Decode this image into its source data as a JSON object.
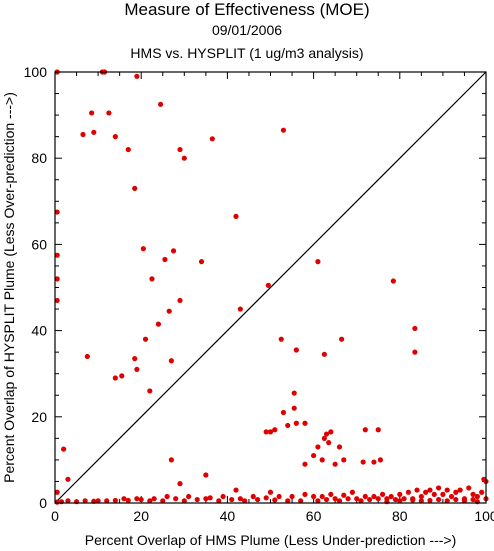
{
  "chart_data": {
    "type": "scatter",
    "title": "Measure of Effectiveness (MOE)",
    "subtitle_date": "09/01/2006",
    "subtitle_comparison": "HMS vs. HYSPLIT  (1 ug/m3 analysis)",
    "xlabel": "Percent Overlap of HMS Plume (Less Under-prediction --->)",
    "ylabel": "Percent Overlap of HYSPLIT Plume (Less Over-prediction --->)",
    "xlim": [
      0,
      100
    ],
    "ylim": [
      0,
      100
    ],
    "x_ticks": [
      0,
      20,
      40,
      60,
      80,
      100
    ],
    "y_ticks": [
      0,
      20,
      40,
      60,
      80,
      100
    ],
    "point_color": "#e00000",
    "reference_line": {
      "from": [
        0,
        0
      ],
      "to": [
        100,
        100
      ]
    },
    "points": [
      [
        0.5,
        100
      ],
      [
        11,
        100
      ],
      [
        11.5,
        100
      ],
      [
        19,
        99
      ],
      [
        8.5,
        90.5
      ],
      [
        12.5,
        90.5
      ],
      [
        24.5,
        92.5
      ],
      [
        6.5,
        85.5
      ],
      [
        9,
        86
      ],
      [
        14,
        85
      ],
      [
        17,
        82
      ],
      [
        29,
        82
      ],
      [
        30,
        80
      ],
      [
        36.5,
        84.5
      ],
      [
        53,
        86.5
      ],
      [
        18.5,
        73
      ],
      [
        42,
        66.5
      ],
      [
        0.5,
        67.5
      ],
      [
        20.5,
        59
      ],
      [
        27.5,
        58.5
      ],
      [
        0.5,
        57.5
      ],
      [
        25.5,
        56.5
      ],
      [
        34,
        56
      ],
      [
        61,
        56
      ],
      [
        0.5,
        52
      ],
      [
        22.5,
        52
      ],
      [
        78.5,
        51.5
      ],
      [
        0.5,
        47
      ],
      [
        29,
        47
      ],
      [
        49.5,
        50.5
      ],
      [
        26.5,
        44.5
      ],
      [
        43,
        45
      ],
      [
        24,
        41.5
      ],
      [
        21,
        38
      ],
      [
        52.5,
        38
      ],
      [
        66.5,
        38
      ],
      [
        83.5,
        40.5
      ],
      [
        83.5,
        35
      ],
      [
        7.5,
        34
      ],
      [
        18.5,
        33.5
      ],
      [
        27,
        33
      ],
      [
        56,
        35.5
      ],
      [
        62.5,
        34.5
      ],
      [
        19,
        31
      ],
      [
        14,
        29
      ],
      [
        15.5,
        29.5
      ],
      [
        22,
        26
      ],
      [
        55.5,
        25.5
      ],
      [
        55.5,
        22
      ],
      [
        53,
        21
      ],
      [
        51,
        17
      ],
      [
        49,
        16.5
      ],
      [
        50,
        16.5
      ],
      [
        54,
        18
      ],
      [
        56,
        18.5
      ],
      [
        58,
        18.5
      ],
      [
        75,
        17
      ],
      [
        72,
        17
      ],
      [
        63,
        16
      ],
      [
        64,
        16.5
      ],
      [
        62.5,
        15
      ],
      [
        63.5,
        14
      ],
      [
        61,
        13
      ],
      [
        66,
        13
      ],
      [
        60,
        11
      ],
      [
        62,
        10
      ],
      [
        58,
        9
      ],
      [
        65,
        9
      ],
      [
        67,
        10
      ],
      [
        71.5,
        9.5
      ],
      [
        74,
        9.5
      ],
      [
        75.5,
        10
      ],
      [
        2,
        12.5
      ],
      [
        27,
        10
      ],
      [
        29,
        4.5
      ],
      [
        35,
        6.5
      ],
      [
        3,
        5.5
      ],
      [
        0.5,
        2.5
      ],
      [
        42,
        3
      ],
      [
        50,
        2.5
      ],
      [
        0.5,
        0.2
      ],
      [
        1.5,
        0.3
      ],
      [
        3,
        0.5
      ],
      [
        5,
        0.3
      ],
      [
        7,
        0.5
      ],
      [
        9,
        0.4
      ],
      [
        10,
        0.5
      ],
      [
        12,
        0.5
      ],
      [
        14,
        0.6
      ],
      [
        16,
        1
      ],
      [
        17,
        0.6
      ],
      [
        19,
        1
      ],
      [
        20,
        0.8
      ],
      [
        22,
        0.5
      ],
      [
        23,
        1
      ],
      [
        25,
        0.5
      ],
      [
        26,
        1.5
      ],
      [
        28,
        1
      ],
      [
        30,
        0.5
      ],
      [
        31,
        1.5
      ],
      [
        33,
        0.8
      ],
      [
        35,
        1
      ],
      [
        36,
        1.2
      ],
      [
        38,
        0.5
      ],
      [
        39,
        1.5
      ],
      [
        41,
        0.8
      ],
      [
        43,
        1
      ],
      [
        44,
        0.5
      ],
      [
        46,
        1.5
      ],
      [
        47,
        0.8
      ],
      [
        49,
        1.2
      ],
      [
        51,
        0.7
      ],
      [
        52,
        1.5
      ],
      [
        54,
        0.5
      ],
      [
        55,
        1.5
      ],
      [
        57,
        0.5
      ],
      [
        58,
        2
      ],
      [
        60,
        1.5
      ],
      [
        61,
        0.5
      ],
      [
        62,
        1.5
      ],
      [
        63,
        0.8
      ],
      [
        64,
        2
      ],
      [
        65,
        1
      ],
      [
        66,
        0.5
      ],
      [
        67,
        1.8
      ],
      [
        68,
        1
      ],
      [
        69,
        2.5
      ],
      [
        70,
        1
      ],
      [
        71,
        0.5
      ],
      [
        72,
        1.5
      ],
      [
        73,
        0.8
      ],
      [
        74,
        1.5
      ],
      [
        75,
        1
      ],
      [
        76,
        2
      ],
      [
        77,
        1
      ],
      [
        78,
        1.5
      ],
      [
        79,
        0.8
      ],
      [
        80,
        2
      ],
      [
        81,
        1
      ],
      [
        82,
        2.5
      ],
      [
        83,
        1
      ],
      [
        84,
        3
      ],
      [
        85,
        1.5
      ],
      [
        86,
        2.5
      ],
      [
        87,
        3
      ],
      [
        88,
        2
      ],
      [
        89,
        3.5
      ],
      [
        90,
        2
      ],
      [
        91,
        3
      ],
      [
        92,
        1.5
      ],
      [
        93,
        2.5
      ],
      [
        94,
        3
      ],
      [
        95,
        1
      ],
      [
        96,
        3.5
      ],
      [
        97,
        2
      ],
      [
        98,
        1.5
      ],
      [
        99,
        2.5
      ],
      [
        100,
        1
      ],
      [
        100,
        5
      ],
      [
        99.5,
        5.5
      ],
      [
        97,
        0.8
      ],
      [
        98,
        0.3
      ],
      [
        95,
        0.5
      ],
      [
        93,
        0.8
      ],
      [
        91,
        0.5
      ],
      [
        89,
        0.8
      ],
      [
        87,
        0.6
      ],
      [
        85,
        0.5
      ],
      [
        83,
        0.7
      ],
      [
        80,
        0.5
      ],
      [
        77,
        0.3
      ]
    ]
  }
}
